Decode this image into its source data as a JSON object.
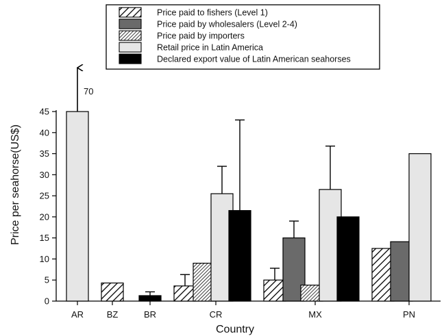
{
  "chart_data": {
    "type": "bar",
    "title": "",
    "xlabel": "Country",
    "ylabel": "Price per seahorse(US$)",
    "ylim": [
      0,
      45
    ],
    "yticks": [
      0,
      5,
      10,
      15,
      20,
      25,
      30,
      35,
      40,
      45
    ],
    "grid": false,
    "legend_position": "top",
    "categories": [
      "AR",
      "BZ",
      "BR",
      "CR",
      "MX",
      "PN"
    ],
    "series": [
      {
        "name": "Price paid to fishers (Level 1)",
        "fill": "hatch-wide",
        "values": [
          null,
          4.3,
          null,
          3.6,
          5.0,
          12.5
        ],
        "error_upper": [
          null,
          null,
          null,
          6.3,
          7.8,
          null
        ]
      },
      {
        "name": "Price paid by wholesalers (Level 2-4)",
        "fill": "#6a6a6a",
        "values": [
          null,
          null,
          null,
          null,
          15.0,
          14.1
        ],
        "error_upper": [
          null,
          null,
          null,
          null,
          19.0,
          null
        ]
      },
      {
        "name": "Price paid by importers",
        "fill": "hatch-dense",
        "values": [
          null,
          null,
          null,
          9.0,
          3.8,
          null
        ],
        "error_upper": [
          null,
          null,
          null,
          null,
          null,
          null
        ]
      },
      {
        "name": "Retail price in Latin America",
        "fill": "#e6e6e6",
        "values": [
          45,
          null,
          null,
          25.5,
          26.5,
          35.0
        ],
        "error_upper": [
          null,
          null,
          null,
          32.0,
          36.8,
          null
        ]
      },
      {
        "name": "Declared export value of Latin American seahorses",
        "fill": "#000000",
        "values": [
          null,
          null,
          1.3,
          21.5,
          20.0,
          null
        ],
        "error_upper": [
          null,
          null,
          2.2,
          43.0,
          null,
          null
        ]
      }
    ],
    "annotations": [
      {
        "text": "70",
        "category": "AR",
        "series": "Retail price in Latin America",
        "note": "value exceeds axis; arrow"
      }
    ]
  }
}
